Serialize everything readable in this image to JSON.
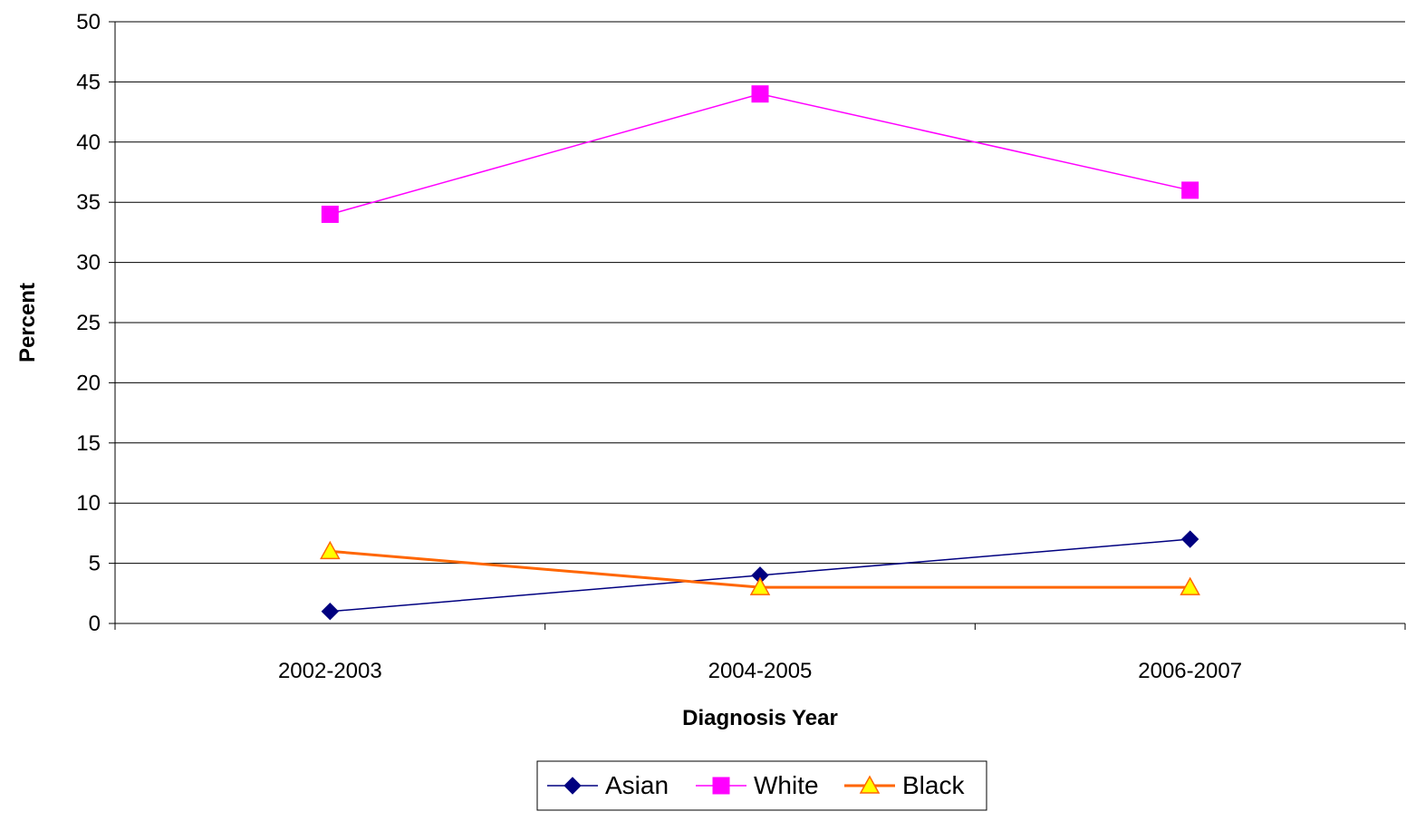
{
  "chart_data": {
    "type": "line",
    "categories": [
      "2002-2003",
      "2004-2005",
      "2006-2007"
    ],
    "series": [
      {
        "name": "Asian",
        "values": [
          1,
          4,
          7
        ],
        "color": "#000080",
        "marker": "diamond"
      },
      {
        "name": "White",
        "values": [
          34,
          44,
          36
        ],
        "color": "#FF00FF",
        "marker": "square"
      },
      {
        "name": "Black",
        "values": [
          6,
          3,
          3
        ],
        "color": "#FF6600",
        "marker_fill": "#FFFF00",
        "marker": "triangle"
      }
    ],
    "xlabel": "Diagnosis Year",
    "ylabel": "Percent",
    "ylim": [
      0,
      50
    ],
    "yticks": [
      0,
      5,
      10,
      15,
      20,
      25,
      30,
      35,
      40,
      45,
      50
    ],
    "grid": true,
    "legend": "bottom"
  }
}
